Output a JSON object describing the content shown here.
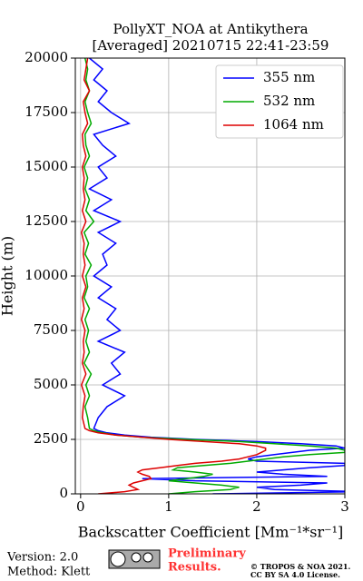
{
  "chart_data": {
    "type": "line",
    "orientation": "vertical-profile",
    "title": "PollyXT_NOA at Antikythera",
    "subtitle": "[Averaged] 20210715 22:41-23:59",
    "xlabel": "Backscatter Coefficient [Mm⁻¹*sr⁻¹]",
    "ylabel": "Height (m)",
    "x": [
      0,
      100,
      200,
      300,
      400,
      500,
      600,
      700,
      800,
      900,
      1000,
      1100,
      1200,
      1300,
      1400,
      1500,
      1600,
      1700,
      1800,
      1900,
      2000,
      2100,
      2200,
      2300,
      2400,
      2500,
      2600,
      2700,
      2800,
      2900,
      3000,
      3500,
      4000,
      4500,
      5000,
      5500,
      6000,
      6500,
      7000,
      7500,
      8000,
      8500,
      9000,
      9500,
      10000,
      10500,
      11000,
      11500,
      12000,
      12500,
      13000,
      13500,
      14000,
      14500,
      15000,
      15500,
      16000,
      16500,
      17000,
      17500,
      18000,
      18500,
      19000,
      19500,
      20000
    ],
    "series": [
      {
        "name": "355 nm",
        "color": "#0000ff",
        "values": [
          1.5,
          3.2,
          2.2,
          2.0,
          2.5,
          2.8,
          1.3,
          0.7,
          2.8,
          2.3,
          2.0,
          2.3,
          2.6,
          3.0,
          3.0,
          2.0,
          1.9,
          2.0,
          2.2,
          2.4,
          2.6,
          3.0,
          2.9,
          2.5,
          2.0,
          1.3,
          0.8,
          0.5,
          0.3,
          0.2,
          0.15,
          0.2,
          0.3,
          0.5,
          0.25,
          0.45,
          0.35,
          0.5,
          0.2,
          0.45,
          0.3,
          0.4,
          0.2,
          0.35,
          0.15,
          0.3,
          0.25,
          0.4,
          0.2,
          0.45,
          0.15,
          0.35,
          0.1,
          0.3,
          0.2,
          0.4,
          0.25,
          0.15,
          0.55,
          0.35,
          0.2,
          0.3,
          0.15,
          0.25,
          0.1
        ]
      },
      {
        "name": "532 nm",
        "color": "#00aa00",
        "values": [
          1.0,
          1.3,
          1.7,
          1.8,
          1.6,
          1.3,
          1.0,
          1.2,
          1.4,
          1.5,
          1.3,
          1.05,
          1.1,
          1.4,
          1.7,
          1.9,
          2.1,
          2.3,
          2.6,
          3.0,
          3.0,
          2.9,
          2.6,
          2.2,
          1.8,
          1.2,
          0.7,
          0.4,
          0.25,
          0.15,
          0.1,
          0.08,
          0.05,
          0.1,
          0.06,
          0.12,
          0.04,
          0.1,
          0.06,
          0.09,
          0.05,
          0.1,
          0.04,
          0.08,
          0.06,
          0.12,
          0.05,
          0.09,
          0.04,
          0.15,
          0.06,
          0.1,
          0.05,
          0.08,
          0.04,
          0.1,
          0.06,
          0.05,
          0.12,
          0.08,
          0.05,
          0.1,
          0.06,
          0.08,
          0.05
        ]
      },
      {
        "name": "1064 nm",
        "color": "#dd0000",
        "values": [
          0.2,
          0.5,
          0.65,
          0.6,
          0.55,
          0.6,
          0.7,
          0.8,
          0.78,
          0.7,
          0.65,
          0.7,
          0.9,
          1.1,
          1.3,
          1.6,
          1.8,
          1.9,
          2.0,
          2.05,
          2.1,
          2.1,
          2.0,
          1.8,
          1.4,
          1.0,
          0.7,
          0.4,
          0.2,
          0.1,
          0.05,
          0.02,
          0.03,
          0.05,
          0.01,
          0.06,
          0.02,
          0.04,
          0.03,
          0.05,
          0.01,
          0.04,
          0.02,
          0.06,
          0.02,
          0.05,
          0.03,
          0.04,
          0.01,
          0.06,
          0.02,
          0.05,
          0.03,
          0.04,
          0.02,
          0.06,
          0.03,
          0.02,
          0.08,
          0.05,
          0.03,
          0.1,
          0.04,
          0.06,
          0.08
        ]
      }
    ],
    "xlim": [
      -0.06,
      3
    ],
    "xticks": [
      0,
      1,
      2,
      3
    ],
    "ylim": [
      0,
      20000
    ],
    "yticks": [
      0,
      2500,
      5000,
      7500,
      10000,
      12500,
      15000,
      17500,
      20000
    ],
    "grid": true,
    "legend": "upper right"
  },
  "footer": {
    "version": "Version: 2.0",
    "method": "Method: Klett",
    "notice": [
      "Preliminary",
      "Results."
    ],
    "copyright": [
      "© TROPOS & NOA 2021.",
      "CC BY SA 4.0 License."
    ]
  }
}
